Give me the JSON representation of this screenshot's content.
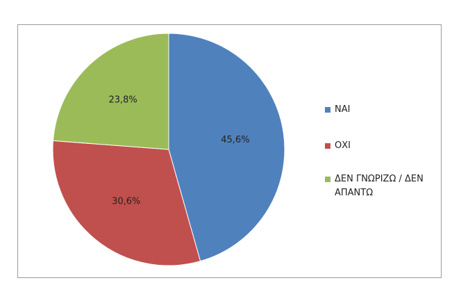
{
  "chart_data": {
    "type": "pie",
    "categories": [
      "ΝΑΙ",
      "ΟΧΙ",
      "ΔΕΝ ΓΝΩΡΙΖΩ / ΔΕΝ ΑΠΑΝΤΩ"
    ],
    "values": [
      45.6,
      30.6,
      23.8
    ],
    "value_labels": [
      "45,6%",
      "30,6%",
      "23,8%"
    ],
    "colors": [
      "#4f81bd",
      "#c0504d",
      "#9bbb59"
    ],
    "legend": "right"
  }
}
